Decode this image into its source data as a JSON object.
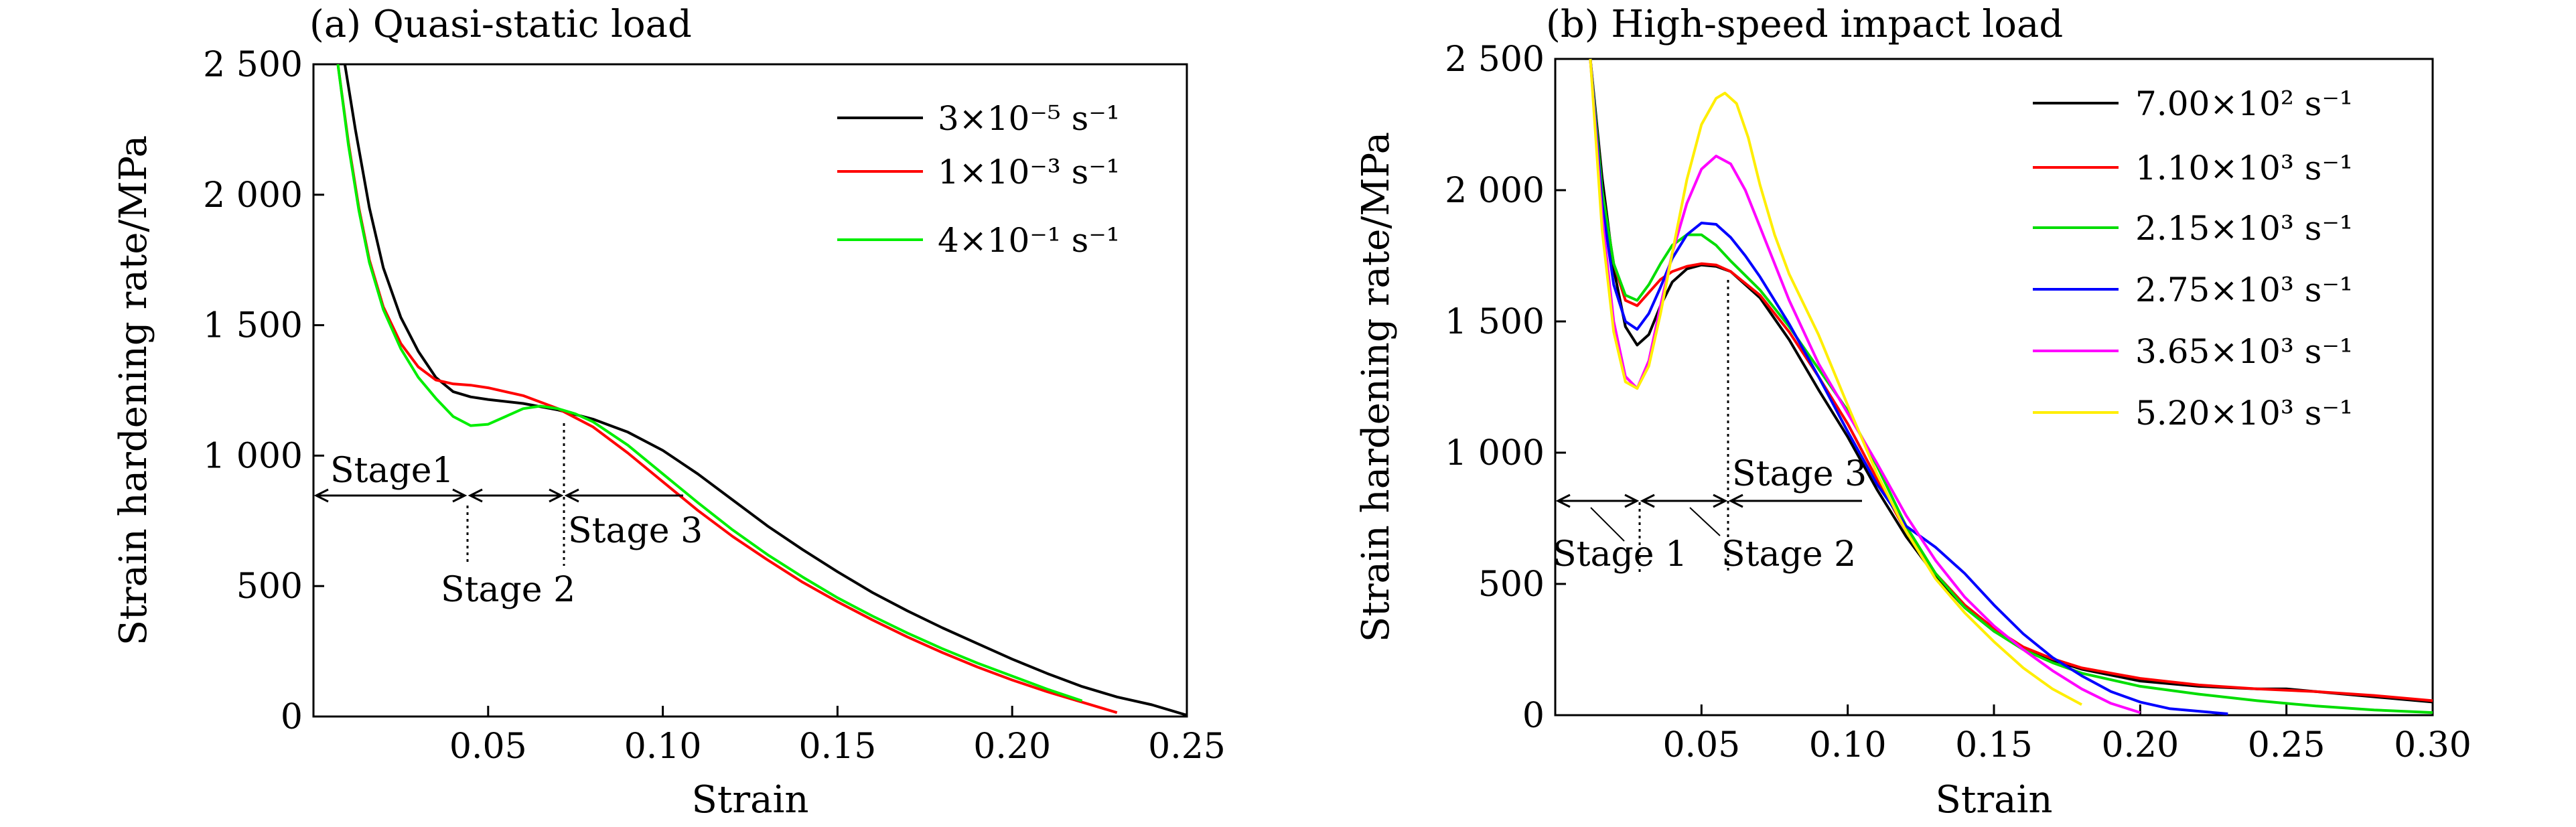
{
  "chart_data": [
    {
      "type": "line",
      "title": "(a) Quasi-static load",
      "xlabel": "Strain",
      "ylabel": "Strain hardening rate/MPa",
      "xlim": [
        0,
        0.25
      ],
      "ylim": [
        0,
        2500
      ],
      "xticks": [
        0.05,
        0.1,
        0.15,
        0.2,
        0.25
      ],
      "xtick_labels": [
        "0.05",
        "0.10",
        "0.15",
        "0.20",
        "0.25"
      ],
      "yticks": [
        0,
        500,
        1000,
        1500,
        2000,
        2500
      ],
      "ytick_labels": [
        "0",
        "500",
        "1 000",
        "1 500",
        "2 000",
        "2 500"
      ],
      "grid": false,
      "legend_position": "top-right",
      "series": [
        {
          "name": "3×10⁻⁵ s⁻¹",
          "color": "#000000",
          "x": [
            0.009,
            0.012,
            0.016,
            0.02,
            0.025,
            0.03,
            0.035,
            0.04,
            0.045,
            0.05,
            0.06,
            0.07,
            0.08,
            0.09,
            0.1,
            0.11,
            0.12,
            0.13,
            0.14,
            0.15,
            0.16,
            0.17,
            0.18,
            0.19,
            0.2,
            0.21,
            0.22,
            0.23,
            0.24,
            0.25
          ],
          "y": [
            2500,
            2250,
            1950,
            1720,
            1530,
            1400,
            1300,
            1245,
            1225,
            1215,
            1200,
            1175,
            1140,
            1090,
            1020,
            930,
            830,
            730,
            640,
            555,
            475,
            405,
            340,
            280,
            220,
            165,
            115,
            75,
            45,
            5
          ]
        },
        {
          "name": "1×10⁻³ s⁻¹",
          "color": "#ff0000",
          "x": [
            0.007,
            0.01,
            0.013,
            0.016,
            0.02,
            0.025,
            0.03,
            0.035,
            0.04,
            0.045,
            0.05,
            0.06,
            0.07,
            0.08,
            0.09,
            0.1,
            0.11,
            0.12,
            0.13,
            0.14,
            0.15,
            0.16,
            0.17,
            0.18,
            0.19,
            0.2,
            0.21,
            0.22,
            0.23
          ],
          "y": [
            2500,
            2200,
            1950,
            1750,
            1570,
            1430,
            1340,
            1290,
            1275,
            1270,
            1260,
            1230,
            1180,
            1110,
            1010,
            900,
            790,
            690,
            600,
            515,
            440,
            370,
            305,
            245,
            190,
            140,
            95,
            55,
            15
          ]
        },
        {
          "name": "4×10⁻¹ s⁻¹",
          "color": "#00ee00",
          "x": [
            0.007,
            0.01,
            0.013,
            0.016,
            0.02,
            0.025,
            0.03,
            0.035,
            0.04,
            0.045,
            0.05,
            0.055,
            0.06,
            0.065,
            0.07,
            0.075,
            0.08,
            0.09,
            0.1,
            0.11,
            0.12,
            0.13,
            0.14,
            0.15,
            0.16,
            0.17,
            0.18,
            0.19,
            0.2,
            0.21,
            0.22
          ],
          "y": [
            2500,
            2190,
            1940,
            1740,
            1560,
            1410,
            1300,
            1220,
            1150,
            1115,
            1120,
            1150,
            1180,
            1190,
            1180,
            1160,
            1130,
            1040,
            930,
            820,
            715,
            620,
            535,
            455,
            385,
            320,
            260,
            205,
            155,
            105,
            60
          ]
        }
      ],
      "annotations": [
        {
          "text": "Stage1",
          "x": 0.022,
          "y": 930
        },
        {
          "text": "Stage 2",
          "x": 0.045,
          "y": 470
        },
        {
          "text": "Stage 3",
          "x": 0.092,
          "y": 660
        }
      ]
    },
    {
      "type": "line",
      "title": "(b) High-speed impact load",
      "xlabel": "Strain",
      "ylabel": "Strain hardening rate/MPa",
      "xlim": [
        0,
        0.3
      ],
      "ylim": [
        0,
        2500
      ],
      "xticks": [
        0.05,
        0.1,
        0.15,
        0.2,
        0.25,
        0.3
      ],
      "xtick_labels": [
        "0.05",
        "0.10",
        "0.15",
        "0.20",
        "0.25",
        "0.30"
      ],
      "yticks": [
        0,
        500,
        1000,
        1500,
        2000,
        2500
      ],
      "ytick_labels": [
        "0",
        "500",
        "1 000",
        "1 500",
        "2 000",
        "2 500"
      ],
      "grid": false,
      "legend_position": "top-right",
      "series": [
        {
          "name": "7.00×10² s⁻¹",
          "color": "#000000",
          "x": [
            0.012,
            0.016,
            0.02,
            0.024,
            0.028,
            0.032,
            0.036,
            0.04,
            0.045,
            0.05,
            0.055,
            0.06,
            0.07,
            0.08,
            0.09,
            0.1,
            0.11,
            0.12,
            0.13,
            0.14,
            0.15,
            0.16,
            0.17,
            0.18,
            0.2,
            0.22,
            0.24,
            0.25,
            0.26,
            0.28,
            0.3
          ],
          "y": [
            2500,
            2050,
            1700,
            1480,
            1410,
            1450,
            1560,
            1650,
            1700,
            1715,
            1710,
            1690,
            1590,
            1430,
            1240,
            1060,
            860,
            680,
            530,
            410,
            320,
            255,
            210,
            175,
            130,
            110,
            100,
            100,
            90,
            70,
            50
          ]
        },
        {
          "name": "1.10×10³ s⁻¹",
          "color": "#ff0000",
          "x": [
            0.012,
            0.016,
            0.02,
            0.024,
            0.028,
            0.032,
            0.036,
            0.04,
            0.045,
            0.05,
            0.055,
            0.06,
            0.07,
            0.08,
            0.09,
            0.1,
            0.11,
            0.12,
            0.13,
            0.14,
            0.15,
            0.16,
            0.17,
            0.18,
            0.2,
            0.22,
            0.24,
            0.26,
            0.28,
            0.3
          ],
          "y": [
            2500,
            2000,
            1720,
            1580,
            1560,
            1610,
            1660,
            1690,
            1710,
            1720,
            1715,
            1690,
            1600,
            1460,
            1290,
            1110,
            900,
            700,
            540,
            420,
            330,
            260,
            215,
            180,
            140,
            115,
            100,
            90,
            75,
            55
          ]
        },
        {
          "name": "2.15×10³ s⁻¹",
          "color": "#00dd00",
          "x": [
            0.012,
            0.016,
            0.02,
            0.024,
            0.028,
            0.032,
            0.036,
            0.04,
            0.045,
            0.05,
            0.055,
            0.06,
            0.07,
            0.08,
            0.09,
            0.1,
            0.11,
            0.12,
            0.13,
            0.14,
            0.15,
            0.16,
            0.17,
            0.18,
            0.2,
            0.22,
            0.24,
            0.26,
            0.28,
            0.3
          ],
          "y": [
            2500,
            2000,
            1720,
            1600,
            1580,
            1640,
            1720,
            1790,
            1830,
            1830,
            1790,
            1730,
            1620,
            1480,
            1320,
            1160,
            950,
            720,
            540,
            410,
            320,
            250,
            200,
            160,
            110,
            80,
            55,
            35,
            20,
            10
          ]
        },
        {
          "name": "2.75×10³ s⁻¹",
          "color": "#0000ff",
          "x": [
            0.012,
            0.016,
            0.02,
            0.024,
            0.028,
            0.032,
            0.036,
            0.04,
            0.045,
            0.05,
            0.055,
            0.06,
            0.065,
            0.07,
            0.08,
            0.09,
            0.1,
            0.11,
            0.12,
            0.13,
            0.14,
            0.15,
            0.16,
            0.17,
            0.18,
            0.19,
            0.2,
            0.21,
            0.22,
            0.23
          ],
          "y": [
            2500,
            1950,
            1640,
            1500,
            1470,
            1530,
            1630,
            1740,
            1830,
            1875,
            1870,
            1820,
            1750,
            1670,
            1490,
            1290,
            1080,
            880,
            720,
            640,
            540,
            420,
            310,
            220,
            150,
            90,
            50,
            25,
            15,
            5
          ]
        },
        {
          "name": "3.65×10³ s⁻¹",
          "color": "#ff00ff",
          "x": [
            0.012,
            0.016,
            0.02,
            0.024,
            0.028,
            0.032,
            0.036,
            0.04,
            0.045,
            0.05,
            0.055,
            0.06,
            0.065,
            0.07,
            0.08,
            0.09,
            0.1,
            0.11,
            0.12,
            0.13,
            0.14,
            0.15,
            0.16,
            0.17,
            0.18,
            0.19,
            0.2
          ],
          "y": [
            2500,
            1900,
            1500,
            1290,
            1245,
            1350,
            1560,
            1760,
            1950,
            2080,
            2130,
            2100,
            2000,
            1860,
            1580,
            1340,
            1150,
            960,
            760,
            590,
            450,
            340,
            250,
            170,
            100,
            45,
            10
          ]
        },
        {
          "name": "5.20×10³ s⁻¹",
          "color": "#ffee00",
          "x": [
            0.012,
            0.016,
            0.02,
            0.024,
            0.028,
            0.032,
            0.036,
            0.04,
            0.045,
            0.05,
            0.055,
            0.058,
            0.062,
            0.066,
            0.07,
            0.075,
            0.08,
            0.09,
            0.1,
            0.11,
            0.12,
            0.13,
            0.14,
            0.15,
            0.16,
            0.17,
            0.18
          ],
          "y": [
            2500,
            1850,
            1460,
            1270,
            1245,
            1330,
            1530,
            1760,
            2040,
            2250,
            2350,
            2370,
            2330,
            2200,
            2020,
            1830,
            1680,
            1450,
            1180,
            920,
            700,
            520,
            390,
            280,
            180,
            100,
            40
          ]
        }
      ],
      "annotations": [
        {
          "text": "Stage 1",
          "x": 0.018,
          "y": 560
        },
        {
          "text": "Stage 2",
          "x": 0.075,
          "y": 560
        },
        {
          "text": "Stage 3",
          "x": 0.082,
          "y": 870
        }
      ]
    }
  ]
}
